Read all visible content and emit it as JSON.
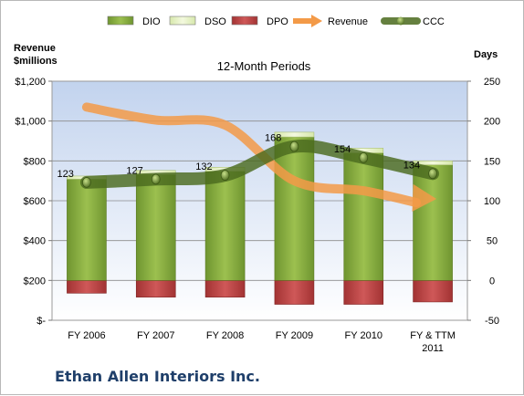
{
  "chart_data": {
    "type": "bar",
    "title": "12-Month Periods",
    "company": "Ethan Allen Interiors Inc.",
    "left_axis": {
      "label_line1": "Revenue",
      "label_line2": "$millions",
      "min": 0,
      "max": 1200,
      "step": 200,
      "tick_labels": [
        "$-",
        "$200",
        "$400",
        "$600",
        "$800",
        "$1,000",
        "$1,200"
      ]
    },
    "right_axis": {
      "label": "Days",
      "min": -50,
      "max": 250,
      "step": 50,
      "tick_labels": [
        "-50",
        "0",
        "50",
        "100",
        "150",
        "200",
        "250"
      ]
    },
    "categories": [
      [
        "FY 2006"
      ],
      [
        "FY 2007"
      ],
      [
        "FY 2008"
      ],
      [
        "FY 2009"
      ],
      [
        "FY 2010"
      ],
      [
        "FY & TTM",
        "2011"
      ]
    ],
    "series": [
      {
        "name": "DIO",
        "axis": "right",
        "kind": "stacked-bar",
        "values": [
          127,
          133,
          137,
          180,
          160,
          145
        ]
      },
      {
        "name": "DSO",
        "axis": "right",
        "kind": "stacked-bar",
        "values": [
          4,
          5,
          5,
          6,
          6,
          5
        ]
      },
      {
        "name": "DPO",
        "axis": "right",
        "kind": "stacked-bar-negative",
        "values": [
          -16,
          -21,
          -21,
          -30,
          -30,
          -27
        ]
      },
      {
        "name": "Revenue",
        "axis": "left",
        "kind": "arrow-line",
        "values": [
          1070,
          1005,
          980,
          700,
          650,
          600
        ]
      },
      {
        "name": "CCC",
        "axis": "right",
        "kind": "line-markers",
        "values": [
          123,
          127,
          132,
          168,
          154,
          134
        ],
        "data_labels": [
          "123",
          "127",
          "132",
          "168",
          "154",
          "134"
        ]
      }
    ],
    "legend": {
      "placement": "top"
    },
    "grid": true,
    "colors": {
      "DIO": "#7ea53a",
      "DSO": "#e6f2c2",
      "DPO": "#b83f3f",
      "Revenue": "#f39a48",
      "CCC": "#4b6a1e",
      "plot_bg_top": "#c7d6ef",
      "plot_bg_bottom": "#ffffff",
      "title_text": "#1f3f6a"
    }
  }
}
